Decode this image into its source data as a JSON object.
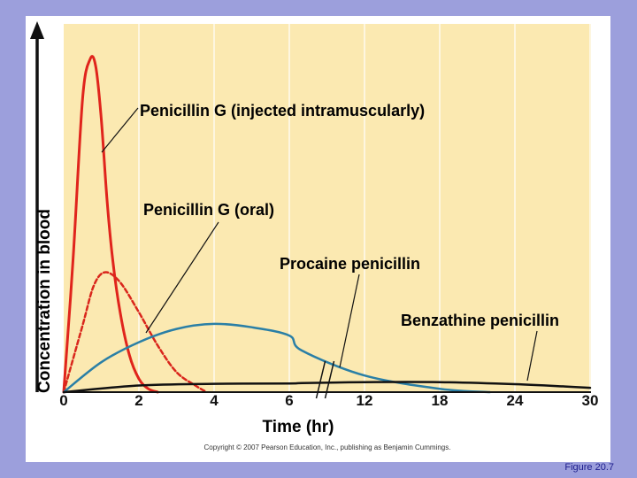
{
  "slide": {
    "figure_label": "Figure 20.7",
    "copyright": "Copyright © 2007 Pearson Education, Inc., publishing as Benjamin Cummings."
  },
  "colors": {
    "plot_background": "#fbe9b1",
    "grid": "#ffffff",
    "axis": "#111111",
    "penicillin_g_im": "#e0241c",
    "penicillin_g_oral": "#d9261c",
    "procaine": "#2a7fa6",
    "benzathine": "#111111"
  },
  "chart_data": {
    "type": "line",
    "title": "",
    "xlabel": "Time (hr)",
    "ylabel": "Concentration in blood",
    "x_ticks": [
      0,
      2,
      4,
      6,
      12,
      18,
      24,
      30
    ],
    "x_tick_labels": [
      "0",
      "2",
      "4",
      "6",
      "12",
      "18",
      "24",
      "30"
    ],
    "axis_break_between": [
      6,
      12
    ],
    "y_ticks": [],
    "y_range": [
      0,
      100
    ],
    "grid": true,
    "legend": "none",
    "series": [
      {
        "name": "Penicillin G (injected intramuscularly)",
        "style": "solid",
        "x": [
          0,
          0.25,
          0.5,
          0.7,
          0.85,
          1.0,
          1.15,
          1.3,
          1.5,
          1.75,
          2.0,
          2.25,
          2.5
        ],
        "y": [
          0,
          40,
          88,
          100,
          98,
          82,
          58,
          40,
          24,
          11,
          4,
          1,
          0
        ]
      },
      {
        "name": "Penicillin G (oral)",
        "style": "dashed",
        "x": [
          0,
          0.5,
          0.8,
          1.1,
          1.5,
          2.0,
          2.5,
          3.0,
          3.5,
          3.8
        ],
        "y": [
          0,
          20,
          32,
          36,
          33,
          24,
          14,
          6,
          2,
          0
        ]
      },
      {
        "name": "Procaine penicillin",
        "style": "solid",
        "x": [
          0,
          1,
          2,
          3,
          4,
          5,
          6,
          7,
          12,
          18,
          22
        ],
        "y": [
          0,
          9,
          15,
          19,
          20.5,
          19.5,
          17,
          12.5,
          5,
          1,
          0
        ]
      },
      {
        "name": "Benzathine penicillin",
        "style": "solid",
        "x": [
          0,
          2,
          4,
          6,
          7,
          12,
          18,
          24,
          28,
          30
        ],
        "y": [
          0,
          2,
          2.5,
          2.6,
          2.7,
          3,
          3,
          2.4,
          1.7,
          1.3
        ]
      }
    ],
    "annotations": [
      {
        "text": "Penicillin G (injected intramuscularly)",
        "points_to_series": 0
      },
      {
        "text": "Penicillin G (oral)",
        "points_to_series": 1
      },
      {
        "text": "Procaine penicillin",
        "points_to_series": 2
      },
      {
        "text": "Benzathine penicillin",
        "points_to_series": 3
      }
    ]
  }
}
